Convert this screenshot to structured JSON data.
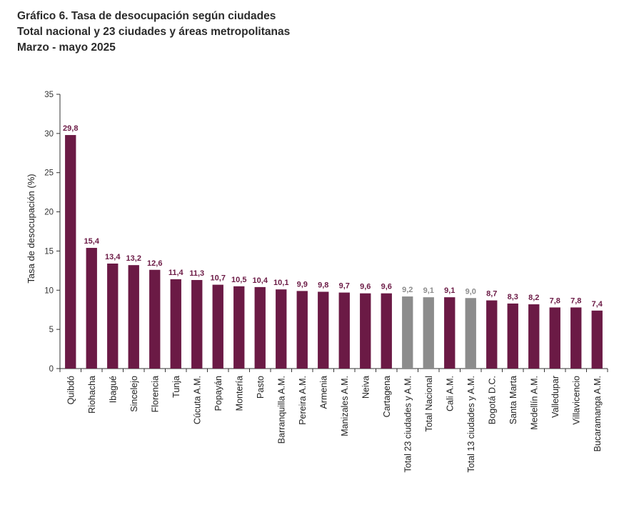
{
  "chart_data": {
    "type": "bar",
    "title": "Gráfico 6. Tasa de desocupación según ciudades",
    "subtitle_lines": [
      "Total nacional y 23 ciudades y áreas metropolitanas",
      "Marzo - mayo 2025"
    ],
    "xlabel": "",
    "ylabel": "Tasa de desocupación (%)",
    "ylim": [
      0,
      35
    ],
    "yticks": [
      0,
      5,
      10,
      15,
      20,
      25,
      30,
      35
    ],
    "grid": false,
    "categories": [
      "Quibdó",
      "Riohacha",
      "Ibagué",
      "Sincelejo",
      "Florencia",
      "Tunja",
      "Cúcuta A.M.",
      "Popayán",
      "Montería",
      "Pasto",
      "Barranquilla A.M.",
      "Pereira A.M.",
      "Armenia",
      "Manizales A.M.",
      "Neiva",
      "Cartagena",
      "Total 23 ciudades y A.M.",
      "Total Nacional",
      "Cali A.M.",
      "Total 13 ciudades y A.M.",
      "Bogotá D.C.",
      "Santa Marta",
      "Medellín A.M.",
      "Valledupar",
      "Villavicencio",
      "Bucaramanga A.M."
    ],
    "values": [
      29.8,
      15.4,
      13.4,
      13.2,
      12.6,
      11.4,
      11.3,
      10.7,
      10.5,
      10.4,
      10.1,
      9.9,
      9.8,
      9.7,
      9.6,
      9.6,
      9.2,
      9.1,
      9.1,
      9.0,
      8.7,
      8.3,
      8.2,
      7.8,
      7.8,
      7.4
    ],
    "value_labels": [
      "29,8",
      "15,4",
      "13,4",
      "13,2",
      "12,6",
      "11,4",
      "11,3",
      "10,7",
      "10,5",
      "10,4",
      "10,1",
      "9,9",
      "9,8",
      "9,7",
      "9,6",
      "9,6",
      "9,2",
      "9,1",
      "9,1",
      "9,0",
      "8,7",
      "8,3",
      "8,2",
      "7,8",
      "7,8",
      "7,4"
    ],
    "highlight_categories": [
      "Total 23 ciudades y A.M.",
      "Total Nacional",
      "Total 13 ciudades y A.M."
    ],
    "colors": {
      "bar": "#6b1a45",
      "highlight_bar": "#8c8c8c",
      "label": "#6b1a45",
      "highlight_label": "#8c8c8c",
      "axis": "#333333"
    }
  }
}
